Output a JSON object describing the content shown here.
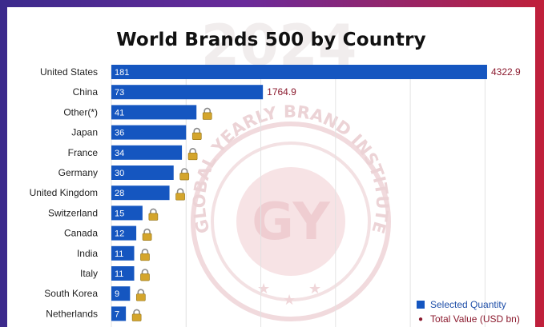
{
  "chart_data": {
    "type": "bar",
    "orientation": "horizontal",
    "title": "World Brands 500 by Country",
    "categories": [
      "United States",
      "China",
      "Other(*)",
      "Japan",
      "France",
      "Germany",
      "United Kingdom",
      "Switzerland",
      "Canada",
      "India",
      "Italy",
      "South Korea",
      "Netherlands"
    ],
    "series": [
      {
        "name": "Selected Quantity",
        "values": [
          181,
          73,
          41,
          36,
          34,
          30,
          28,
          15,
          12,
          11,
          11,
          9,
          7
        ]
      }
    ],
    "total_value_labels": [
      "4322.9",
      "1764.9"
    ],
    "locked_value_icon": "lock-icon",
    "xlim": [
      0,
      190
    ],
    "grid": true,
    "legend_position": "bottom-right"
  },
  "watermark": {
    "year": "2024",
    "arc_text": "GLOBAL YEARLY BRAND INSTITUTE",
    "monogram": "GY"
  },
  "legend": {
    "series_label": "Selected Quantity",
    "value_label": "Total Value (USD bn)"
  },
  "colors": {
    "bar": "#1556c0",
    "value_text": "#8b1a2e",
    "watermark": "#e8c2c7",
    "grid": "#e2e2e2"
  }
}
